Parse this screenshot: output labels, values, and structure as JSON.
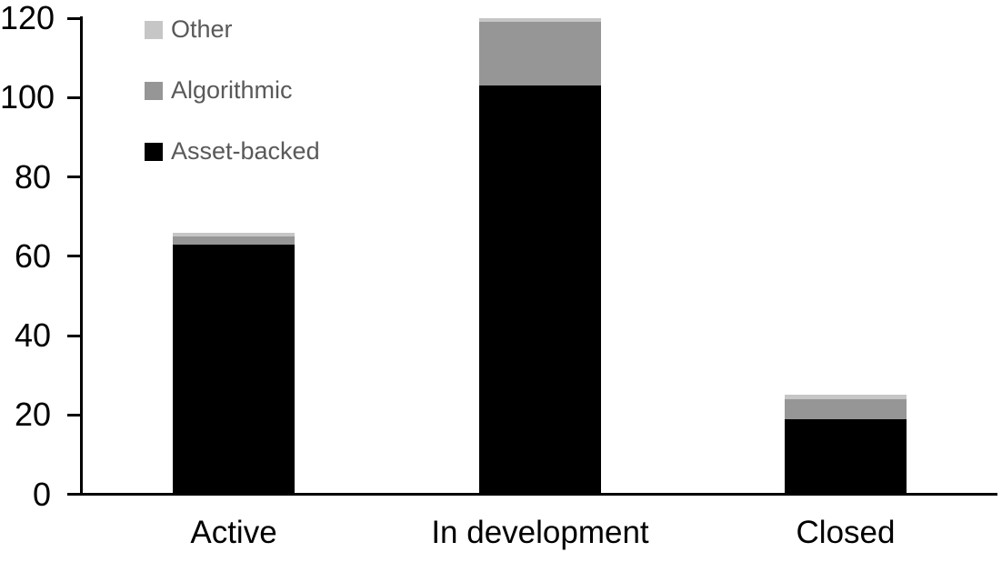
{
  "chart_data": {
    "type": "bar",
    "stacked": true,
    "title": "",
    "xlabel": "",
    "ylabel": "",
    "categories": [
      "Active",
      "In development",
      "Closed"
    ],
    "series": [
      {
        "name": "Asset-backed",
        "color": "#000000",
        "values": [
          63,
          103,
          19
        ]
      },
      {
        "name": "Algorithmic",
        "color": "#969696",
        "values": [
          2,
          16,
          5
        ]
      },
      {
        "name": "Other",
        "color": "#c6c6c6",
        "values": [
          1,
          1,
          1
        ]
      }
    ],
    "totals": [
      66,
      120,
      25
    ],
    "ylim": [
      0,
      120
    ],
    "yticks": [
      0,
      20,
      40,
      60,
      80,
      100,
      120
    ],
    "grid": false,
    "legend_position": "top-left",
    "legend_order_top_to_bottom": [
      "Other",
      "Algorithmic",
      "Asset-backed"
    ],
    "legend_text_color": "#595959",
    "axis_color": "#000000",
    "axis_text_color": "#000000",
    "background_color": "#ffffff"
  }
}
